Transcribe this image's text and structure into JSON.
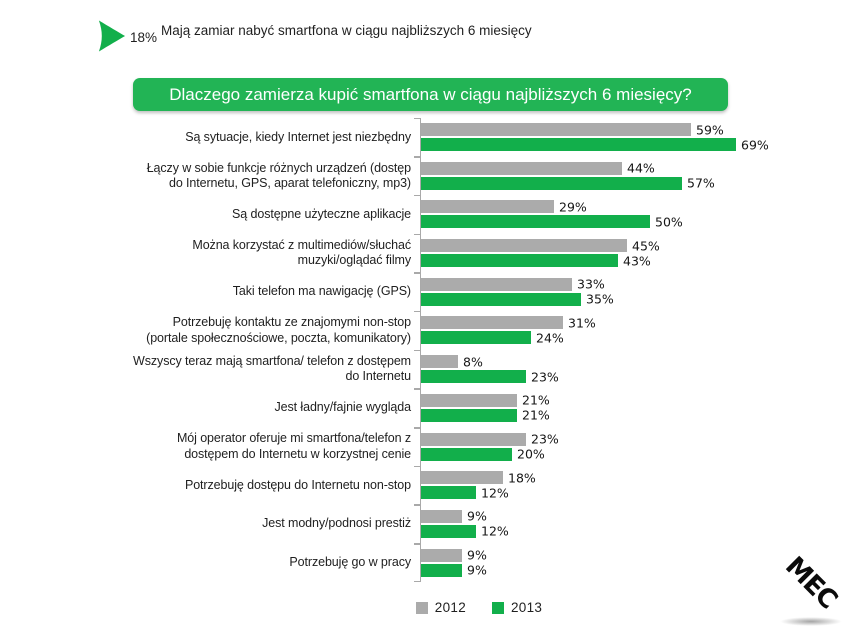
{
  "colors": {
    "green_bar": "#12AF4B",
    "banner_green": "#22B455",
    "gray_bar": "#ABABAB",
    "axis_gray": "#A9A9A9",
    "text_dark": "#1F1F1F"
  },
  "header": {
    "stat_value": "18%",
    "stat_text": "Mają zamiar nabyć smartfona w ciągu najbliższych 6 miesięcy",
    "arrow_icon": "green-play-arrow-icon"
  },
  "chart_data": {
    "type": "bar",
    "orientation": "horizontal",
    "title": "Dlaczego zamierza kupić smartfona w ciągu najbliższych 6 miesięcy?",
    "categories": [
      "Są sytuacje, kiedy Internet jest niezbędny",
      "Łączy w sobie funkcje różnych urządzeń (dostęp do Internetu, GPS, aparat telefoniczny, mp3)",
      "Są dostępne użyteczne aplikacje",
      "Można korzystać z multimediów/słuchać muzyki/oglądać filmy",
      "Taki telefon ma nawigację (GPS)",
      "Potrzebuję kontaktu ze znajomymi non-stop (portale społecznościowe, poczta, komunikatory)",
      "Wszyscy teraz mają smartfona/ telefon z dostępem do Internetu",
      "Jest ładny/fajnie wygląda",
      "Mój operator oferuje mi smartfona/telefon z dostępem do Internetu w korzystnej cenie",
      "Potrzebuję dostępu do Internetu non-stop",
      "Jest modny/podnosi prestiż",
      "Potrzebuję go w pracy"
    ],
    "series": [
      {
        "name": "2012",
        "color": "#ABABAB",
        "values": [
          59,
          44,
          29,
          45,
          33,
          31,
          8,
          21,
          23,
          18,
          9,
          9
        ]
      },
      {
        "name": "2013",
        "color": "#12AF4B",
        "values": [
          69,
          57,
          50,
          43,
          35,
          24,
          23,
          21,
          20,
          12,
          12,
          9
        ]
      }
    ],
    "value_suffix": "%",
    "xlim": [
      0,
      70
    ],
    "grid": false,
    "legend_position": "bottom"
  },
  "logo": {
    "text": "MEC"
  }
}
